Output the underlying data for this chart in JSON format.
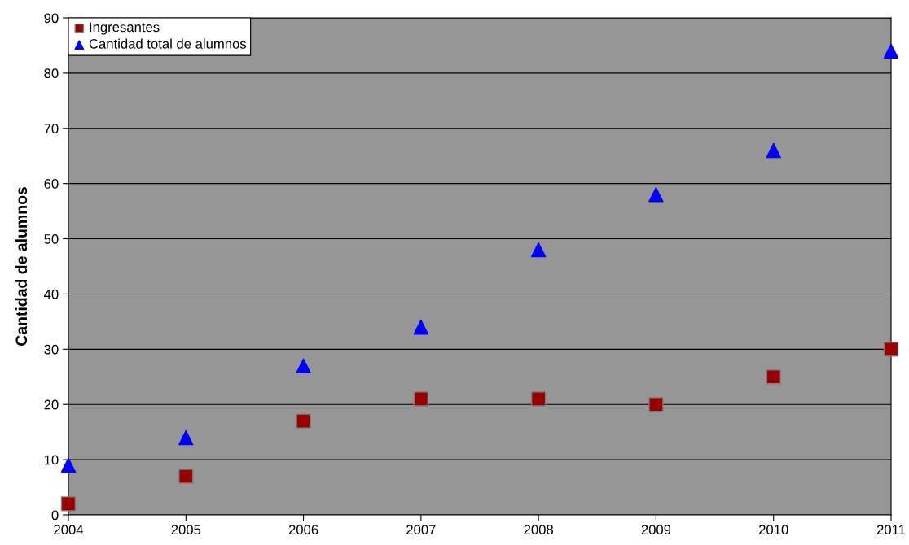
{
  "chart_data": {
    "type": "scatter",
    "ylabel": "Cantidad de alumnos",
    "x": [
      2004,
      2005,
      2006,
      2007,
      2008,
      2009,
      2010,
      2011
    ],
    "series": [
      {
        "name": "Ingresantes",
        "color": "#990000",
        "marker": "square",
        "values": [
          2,
          7,
          17,
          21,
          21,
          20,
          25,
          30
        ]
      },
      {
        "name": "Cantidad total de alumnos",
        "color": "#0000ff",
        "marker": "triangle",
        "values": [
          9,
          14,
          27,
          34,
          48,
          58,
          66,
          84
        ]
      }
    ],
    "xlim": [
      2004,
      2011
    ],
    "xticks": [
      2004,
      2005,
      2006,
      2007,
      2008,
      2009,
      2010,
      2011
    ],
    "ylim": [
      0,
      90
    ],
    "yticks": [
      0,
      10,
      20,
      30,
      40,
      50,
      60,
      70,
      80,
      90
    ],
    "grid": "y",
    "legend": "top left"
  }
}
